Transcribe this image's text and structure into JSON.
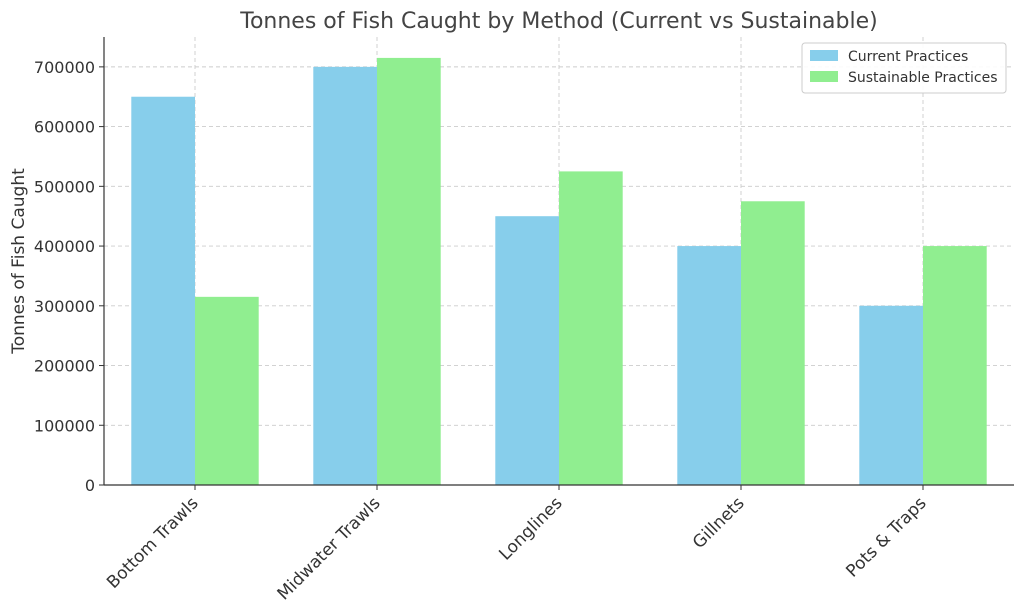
{
  "chart_data": {
    "type": "bar",
    "title": "Tonnes of Fish Caught by Method (Current vs Sustainable)",
    "xlabel": "",
    "ylabel": "Tonnes of Fish Caught",
    "categories": [
      "Bottom Trawls",
      "Midwater Trawls",
      "Longlines",
      "Gillnets",
      "Pots & Traps"
    ],
    "series": [
      {
        "name": "Current Practices",
        "color": "#87ceeb",
        "values": [
          650000,
          700000,
          450000,
          400000,
          300000
        ]
      },
      {
        "name": "Sustainable Practices",
        "color": "#90ee90",
        "values": [
          315000,
          715000,
          525000,
          475000,
          400000
        ]
      }
    ],
    "ylim": [
      0,
      750000
    ],
    "yticks": [
      0,
      100000,
      200000,
      300000,
      400000,
      500000,
      600000,
      700000
    ],
    "grid": true,
    "legend_position": "top-right"
  }
}
